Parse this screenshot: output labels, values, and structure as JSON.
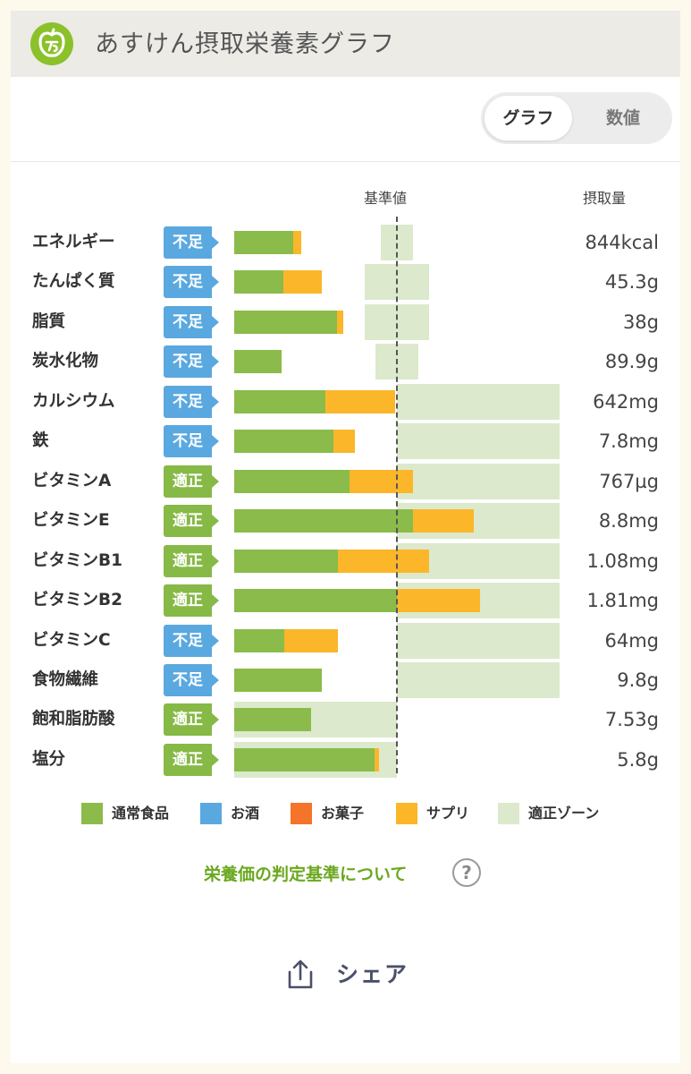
{
  "header": {
    "title": "あすけん摂取栄養素グラフ",
    "logo_icon": "apple-logo-icon"
  },
  "view_toggle": {
    "options": [
      "グラフ",
      "数値"
    ],
    "selected": "グラフ"
  },
  "columns": {
    "standard": "基準値",
    "intake": "摂取量"
  },
  "status_colors": {
    "不足": "#5aa8e0",
    "適正": "#86b945"
  },
  "legend": [
    {
      "label": "通常食品",
      "color": "#8bbb4a"
    },
    {
      "label": "お酒",
      "color": "#5aa8e0"
    },
    {
      "label": "お菓子",
      "color": "#f4742a"
    },
    {
      "label": "サプリ",
      "color": "#fbb62a"
    },
    {
      "label": "適正ゾーン",
      "color": "#dce9cc"
    }
  ],
  "nutrients": [
    {
      "name": "エネルギー",
      "status": "不足",
      "value": "844kcal",
      "food_pct": 36,
      "supp_pct": 5,
      "zone": [
        90,
        110
      ]
    },
    {
      "name": "たんぱく質",
      "status": "不足",
      "value": "45.3g",
      "food_pct": 30,
      "supp_pct": 24,
      "zone": [
        80,
        120
      ]
    },
    {
      "name": "脂質",
      "status": "不足",
      "value": "38g",
      "food_pct": 63,
      "supp_pct": 4,
      "zone": [
        80,
        120
      ]
    },
    {
      "name": "炭水化物",
      "status": "不足",
      "value": "89.9g",
      "food_pct": 29,
      "supp_pct": 0,
      "zone": [
        87,
        113
      ]
    },
    {
      "name": "カルシウム",
      "status": "不足",
      "value": "642mg",
      "food_pct": 56,
      "supp_pct": 43,
      "zone": [
        100,
        200
      ]
    },
    {
      "name": "鉄",
      "status": "不足",
      "value": "7.8mg",
      "food_pct": 61,
      "supp_pct": 13,
      "zone": [
        100,
        200
      ]
    },
    {
      "name": "ビタミンA",
      "status": "適正",
      "value": "767µg",
      "food_pct": 71,
      "supp_pct": 39,
      "zone": [
        100,
        200
      ]
    },
    {
      "name": "ビタミンE",
      "status": "適正",
      "value": "8.8mg",
      "food_pct": 110,
      "supp_pct": 37,
      "zone": [
        100,
        200
      ]
    },
    {
      "name": "ビタミンB1",
      "status": "適正",
      "value": "1.08mg",
      "food_pct": 64,
      "supp_pct": 56,
      "zone": [
        100,
        200
      ]
    },
    {
      "name": "ビタミンB2",
      "status": "適正",
      "value": "1.81mg",
      "food_pct": 100,
      "supp_pct": 51,
      "zone": [
        100,
        200
      ]
    },
    {
      "name": "ビタミンC",
      "status": "不足",
      "value": "64mg",
      "food_pct": 31,
      "supp_pct": 33,
      "zone": [
        100,
        200
      ]
    },
    {
      "name": "食物繊維",
      "status": "不足",
      "value": "9.8g",
      "food_pct": 54,
      "supp_pct": 0,
      "zone": [
        100,
        200
      ]
    },
    {
      "name": "飽和脂肪酸",
      "status": "適正",
      "value": "7.53g",
      "food_pct": 47,
      "supp_pct": 0,
      "zone": [
        0,
        100
      ]
    },
    {
      "name": "塩分",
      "status": "適正",
      "value": "5.8g",
      "food_pct": 86,
      "supp_pct": 3,
      "zone": [
        0,
        100
      ]
    }
  ],
  "criteria_link": "栄養価の判定基準について",
  "share": {
    "label": "シェア",
    "icon": "share-upload-icon"
  }
}
